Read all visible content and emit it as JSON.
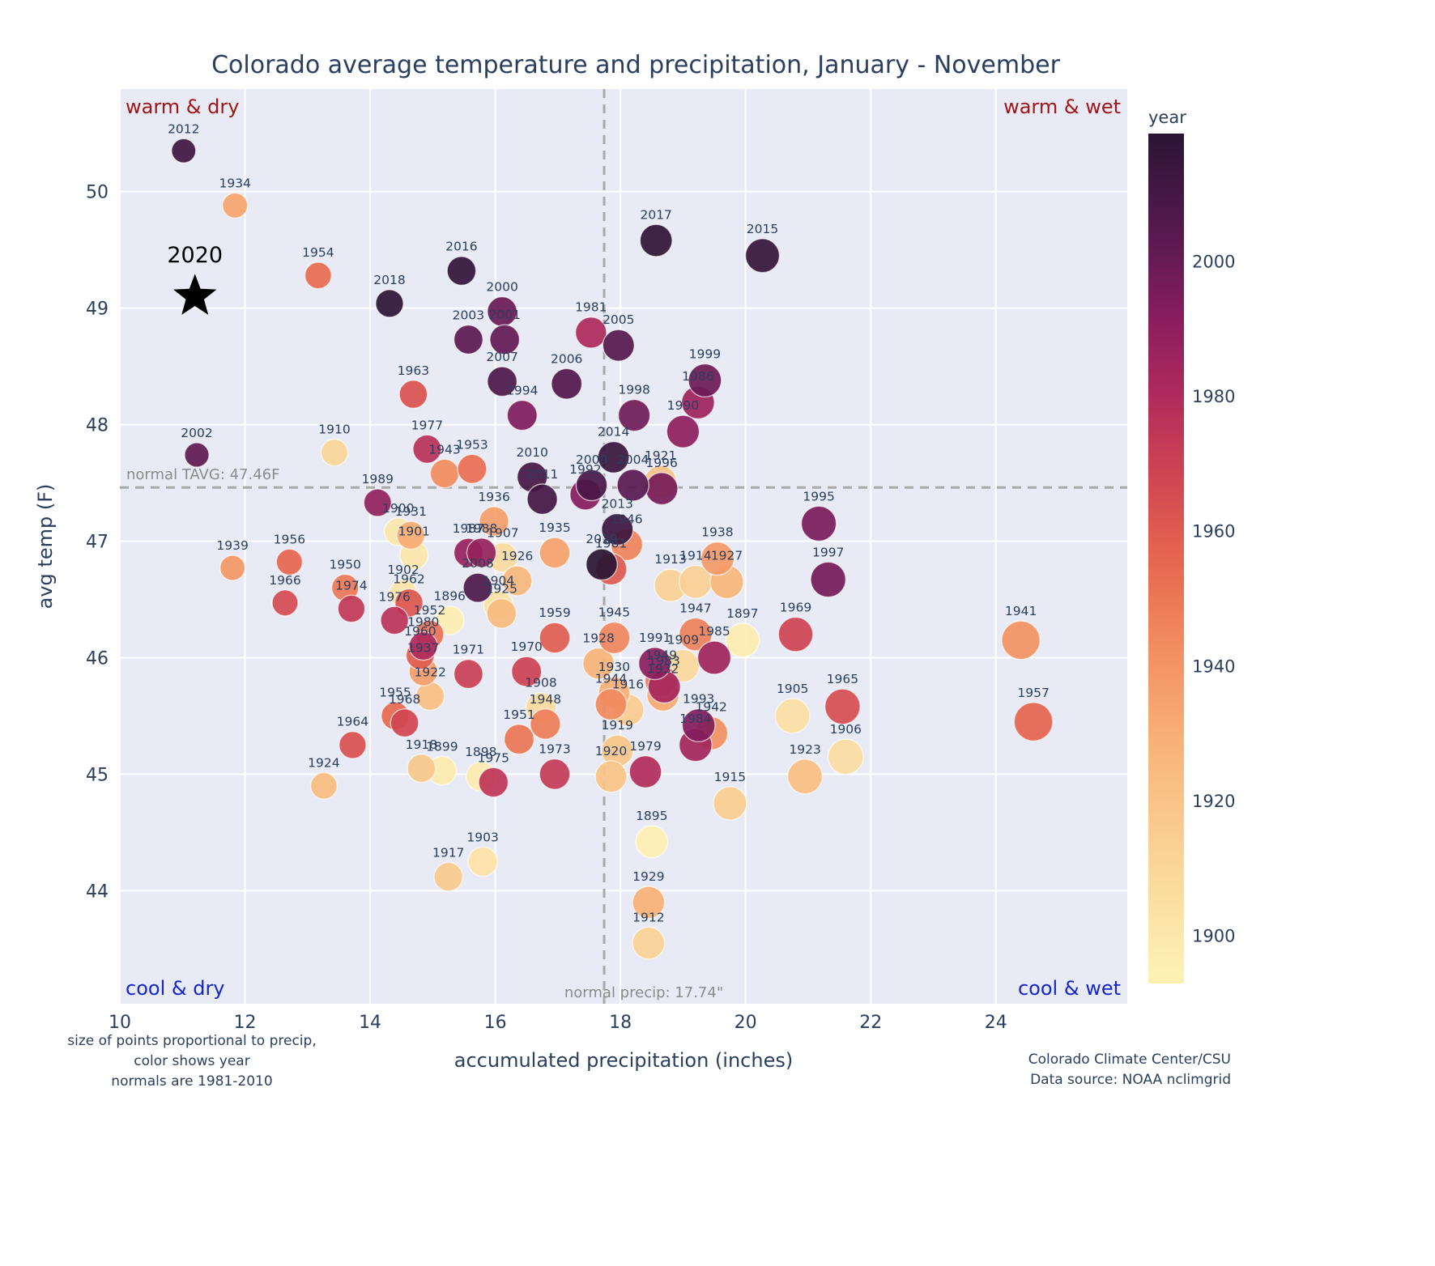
{
  "quadrants": {
    "top_left": "warm & dry",
    "top_right": "warm & wet",
    "bottom_left": "cool & dry",
    "bottom_right": "cool & wet"
  },
  "footnotes": {
    "lines": [
      "size of points proportional to precip,",
      "color shows year",
      "normals are 1981-2010"
    ]
  },
  "credits": {
    "lines": [
      "Colorado Climate Center/CSU",
      "Data source: NOAA nclimgrid"
    ]
  },
  "colors": {
    "plot_bg": "#e8ebf5",
    "grid": "#ffffff",
    "text": "#2a3f5f",
    "muted": "#8b8b8b",
    "warm": "#a31515",
    "cool": "#1425cf",
    "ref_line": "#a9a9a9",
    "highlight": "#000000"
  },
  "chart_data": {
    "type": "scatter",
    "title": "Colorado average temperature and precipitation, January - November",
    "xlabel": "accumulated precipitation (inches)",
    "ylabel": "avg temp (F)",
    "x_ticks": [
      10,
      12,
      14,
      16,
      18,
      20,
      22,
      24
    ],
    "y_ticks": [
      44,
      45,
      46,
      47,
      48,
      49,
      50
    ],
    "x_range": [
      10,
      26.1
    ],
    "y_range": [
      43.03,
      50.88
    ],
    "normal_tavg": {
      "value": 47.46,
      "label": "normal TAVG: 47.46F"
    },
    "normal_precip": {
      "value": 17.74,
      "label": "normal precip: 17.74\""
    },
    "highlight": {
      "label": "2020",
      "precip": 11.2,
      "temp": 49.1
    },
    "colorbar": {
      "title": "year",
      "ticks": [
        1900,
        1920,
        1940,
        1960,
        1980,
        2000
      ],
      "year_min": 1893,
      "year_max": 2019,
      "gradient": [
        [
          1895,
          "#fdf0b3"
        ],
        [
          1912,
          "#fad396"
        ],
        [
          1928,
          "#f8b478"
        ],
        [
          1942,
          "#f29060"
        ],
        [
          1955,
          "#e76950"
        ],
        [
          1968,
          "#d14652"
        ],
        [
          1980,
          "#b02b5c"
        ],
        [
          1992,
          "#871d5e"
        ],
        [
          2004,
          "#581a50"
        ],
        [
          2019,
          "#2a1534"
        ]
      ]
    },
    "points": [
      {
        "year": 1895,
        "precip": 18.5,
        "temp": 44.42
      },
      {
        "year": 1896,
        "precip": 15.27,
        "temp": 46.32
      },
      {
        "year": 1897,
        "precip": 19.95,
        "temp": 46.15
      },
      {
        "year": 1898,
        "precip": 15.77,
        "temp": 44.98
      },
      {
        "year": 1899,
        "precip": 15.15,
        "temp": 45.03
      },
      {
        "year": 1900,
        "precip": 14.45,
        "temp": 47.08
      },
      {
        "year": 1901,
        "precip": 14.7,
        "temp": 46.88
      },
      {
        "year": 1902,
        "precip": 14.53,
        "temp": 46.55
      },
      {
        "year": 1903,
        "precip": 15.8,
        "temp": 44.25
      },
      {
        "year": 1904,
        "precip": 16.05,
        "temp": 46.45
      },
      {
        "year": 1905,
        "precip": 20.75,
        "temp": 45.5
      },
      {
        "year": 1906,
        "precip": 21.6,
        "temp": 45.15
      },
      {
        "year": 1907,
        "precip": 16.12,
        "temp": 46.86
      },
      {
        "year": 1908,
        "precip": 16.73,
        "temp": 45.57
      },
      {
        "year": 1909,
        "precip": 19.0,
        "temp": 45.93
      },
      {
        "year": 1910,
        "precip": 13.43,
        "temp": 47.76
      },
      {
        "year": 1912,
        "precip": 18.45,
        "temp": 43.55
      },
      {
        "year": 1913,
        "precip": 18.8,
        "temp": 46.62
      },
      {
        "year": 1914,
        "precip": 19.2,
        "temp": 46.65
      },
      {
        "year": 1915,
        "precip": 19.75,
        "temp": 44.75
      },
      {
        "year": 1916,
        "precip": 18.12,
        "temp": 45.55
      },
      {
        "year": 1917,
        "precip": 15.25,
        "temp": 44.12
      },
      {
        "year": 1918,
        "precip": 14.82,
        "temp": 45.05
      },
      {
        "year": 1919,
        "precip": 17.95,
        "temp": 45.2
      },
      {
        "year": 1920,
        "precip": 17.85,
        "temp": 44.98
      },
      {
        "year": 1921,
        "precip": 18.64,
        "temp": 47.51
      },
      {
        "year": 1922,
        "precip": 14.96,
        "temp": 45.67
      },
      {
        "year": 1923,
        "precip": 20.95,
        "temp": 44.98
      },
      {
        "year": 1924,
        "precip": 13.26,
        "temp": 44.9
      },
      {
        "year": 1925,
        "precip": 16.1,
        "temp": 46.38
      },
      {
        "year": 1926,
        "precip": 16.35,
        "temp": 46.66
      },
      {
        "year": 1927,
        "precip": 19.7,
        "temp": 46.65
      },
      {
        "year": 1928,
        "precip": 17.65,
        "temp": 45.95
      },
      {
        "year": 1929,
        "precip": 18.45,
        "temp": 43.9
      },
      {
        "year": 1930,
        "precip": 17.9,
        "temp": 45.7
      },
      {
        "year": 1931,
        "precip": 14.65,
        "temp": 47.05
      },
      {
        "year": 1932,
        "precip": 18.68,
        "temp": 45.68
      },
      {
        "year": 1934,
        "precip": 11.84,
        "temp": 49.88
      },
      {
        "year": 1935,
        "precip": 16.95,
        "temp": 46.9
      },
      {
        "year": 1936,
        "precip": 15.98,
        "temp": 47.17
      },
      {
        "year": 1937,
        "precip": 14.85,
        "temp": 45.88
      },
      {
        "year": 1938,
        "precip": 19.55,
        "temp": 46.85
      },
      {
        "year": 1939,
        "precip": 11.8,
        "temp": 46.77
      },
      {
        "year": 1941,
        "precip": 24.4,
        "temp": 46.15
      },
      {
        "year": 1942,
        "precip": 19.45,
        "temp": 45.35
      },
      {
        "year": 1943,
        "precip": 15.19,
        "temp": 47.58
      },
      {
        "year": 1944,
        "precip": 17.85,
        "temp": 45.6
      },
      {
        "year": 1945,
        "precip": 17.9,
        "temp": 46.17
      },
      {
        "year": 1946,
        "precip": 18.1,
        "temp": 46.97
      },
      {
        "year": 1947,
        "precip": 19.2,
        "temp": 46.2
      },
      {
        "year": 1948,
        "precip": 16.8,
        "temp": 45.43
      },
      {
        "year": 1949,
        "precip": 18.65,
        "temp": 45.8
      },
      {
        "year": 1950,
        "precip": 13.6,
        "temp": 46.6
      },
      {
        "year": 1951,
        "precip": 16.38,
        "temp": 45.3
      },
      {
        "year": 1952,
        "precip": 14.95,
        "temp": 46.2
      },
      {
        "year": 1953,
        "precip": 15.63,
        "temp": 47.62
      },
      {
        "year": 1954,
        "precip": 13.17,
        "temp": 49.28
      },
      {
        "year": 1955,
        "precip": 14.4,
        "temp": 45.5
      },
      {
        "year": 1956,
        "precip": 12.71,
        "temp": 46.82
      },
      {
        "year": 1957,
        "precip": 24.6,
        "temp": 45.45
      },
      {
        "year": 1959,
        "precip": 16.95,
        "temp": 46.17
      },
      {
        "year": 1960,
        "precip": 14.8,
        "temp": 46.02
      },
      {
        "year": 1961,
        "precip": 17.85,
        "temp": 46.76
      },
      {
        "year": 1962,
        "precip": 14.62,
        "temp": 46.47
      },
      {
        "year": 1963,
        "precip": 14.69,
        "temp": 48.26
      },
      {
        "year": 1964,
        "precip": 13.72,
        "temp": 45.25
      },
      {
        "year": 1965,
        "precip": 21.55,
        "temp": 45.58
      },
      {
        "year": 1966,
        "precip": 12.64,
        "temp": 46.47
      },
      {
        "year": 1968,
        "precip": 14.55,
        "temp": 45.44
      },
      {
        "year": 1969,
        "precip": 20.8,
        "temp": 46.2
      },
      {
        "year": 1970,
        "precip": 16.5,
        "temp": 45.88
      },
      {
        "year": 1971,
        "precip": 15.57,
        "temp": 45.86
      },
      {
        "year": 1973,
        "precip": 16.95,
        "temp": 45.0
      },
      {
        "year": 1974,
        "precip": 13.7,
        "temp": 46.42
      },
      {
        "year": 1975,
        "precip": 15.97,
        "temp": 44.93
      },
      {
        "year": 1976,
        "precip": 14.39,
        "temp": 46.32
      },
      {
        "year": 1977,
        "precip": 14.91,
        "temp": 47.79
      },
      {
        "year": 1979,
        "precip": 18.4,
        "temp": 45.02
      },
      {
        "year": 1980,
        "precip": 14.85,
        "temp": 46.1
      },
      {
        "year": 1981,
        "precip": 17.53,
        "temp": 48.79
      },
      {
        "year": 1983,
        "precip": 18.7,
        "temp": 45.75
      },
      {
        "year": 1984,
        "precip": 19.2,
        "temp": 45.25
      },
      {
        "year": 1985,
        "precip": 19.5,
        "temp": 46.0
      },
      {
        "year": 1986,
        "precip": 19.24,
        "temp": 48.19
      },
      {
        "year": 1987,
        "precip": 15.57,
        "temp": 46.9
      },
      {
        "year": 1988,
        "precip": 15.78,
        "temp": 46.9
      },
      {
        "year": 1989,
        "precip": 14.12,
        "temp": 47.33
      },
      {
        "year": 1990,
        "precip": 19.0,
        "temp": 47.94
      },
      {
        "year": 1991,
        "precip": 18.55,
        "temp": 45.95
      },
      {
        "year": 1992,
        "precip": 17.44,
        "temp": 47.4
      },
      {
        "year": 1993,
        "precip": 19.25,
        "temp": 45.42
      },
      {
        "year": 1994,
        "precip": 16.43,
        "temp": 48.08
      },
      {
        "year": 1995,
        "precip": 21.17,
        "temp": 47.15
      },
      {
        "year": 1996,
        "precip": 18.66,
        "temp": 47.45
      },
      {
        "year": 1997,
        "precip": 21.32,
        "temp": 46.67
      },
      {
        "year": 1998,
        "precip": 18.22,
        "temp": 48.08
      },
      {
        "year": 1999,
        "precip": 19.35,
        "temp": 48.38
      },
      {
        "year": 2000,
        "precip": 16.11,
        "temp": 48.97
      },
      {
        "year": 2001,
        "precip": 16.15,
        "temp": 48.73
      },
      {
        "year": 2002,
        "precip": 11.23,
        "temp": 47.74
      },
      {
        "year": 2003,
        "precip": 15.57,
        "temp": 48.73
      },
      {
        "year": 2004,
        "precip": 18.2,
        "temp": 47.48
      },
      {
        "year": 2005,
        "precip": 17.97,
        "temp": 48.68
      },
      {
        "year": 2006,
        "precip": 17.14,
        "temp": 48.35
      },
      {
        "year": 2007,
        "precip": 16.11,
        "temp": 48.37
      },
      {
        "year": 2008,
        "precip": 15.72,
        "temp": 46.6
      },
      {
        "year": 2009,
        "precip": 17.54,
        "temp": 47.48
      },
      {
        "year": 2010,
        "precip": 16.59,
        "temp": 47.55
      },
      {
        "year": 2011,
        "precip": 16.75,
        "temp": 47.36
      },
      {
        "year": 2012,
        "precip": 11.02,
        "temp": 50.35
      },
      {
        "year": 2013,
        "precip": 17.95,
        "temp": 47.1
      },
      {
        "year": 2014,
        "precip": 17.89,
        "temp": 47.72
      },
      {
        "year": 2015,
        "precip": 20.27,
        "temp": 49.45
      },
      {
        "year": 2016,
        "precip": 15.46,
        "temp": 49.32
      },
      {
        "year": 2017,
        "precip": 18.57,
        "temp": 49.58
      },
      {
        "year": 2018,
        "precip": 14.31,
        "temp": 49.04
      },
      {
        "year": 2019,
        "precip": 17.7,
        "temp": 46.8
      }
    ]
  }
}
